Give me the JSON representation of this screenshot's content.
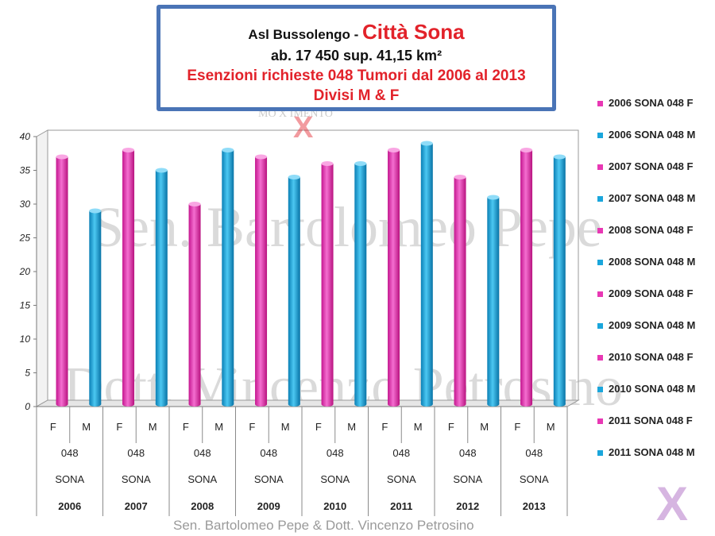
{
  "title": {
    "line1_prefix": "Asl Bussolengo - ",
    "line1_city": "Città Sona",
    "line2": "ab. 17 450 sup. 41,15 km²",
    "line3": "Esenzioni richieste 048 Tumori  dal 2006 al 2013",
    "line4": "Divisi M & F"
  },
  "watermarks": {
    "main1": "Sen. Bartolomeo Pepe",
    "main2": "Dott. Vincenzo Petrosino",
    "small": "MO   X   IMENTO"
  },
  "footer": "Sen. Bartolomeo Pepe &  Dott. Vincenzo Petrosino",
  "logo_letter": "X",
  "colors": {
    "F": "#e838b4",
    "M": "#1aa6dc",
    "title_border": "#4a74b6",
    "title_red": "#e2222a"
  },
  "chart_data": {
    "type": "bar",
    "ylim": [
      0,
      40
    ],
    "yticks": [
      0,
      5,
      10,
      15,
      20,
      25,
      30,
      35,
      40
    ],
    "grid": false,
    "legend_position": "right",
    "code_label": "048",
    "place_label": "SONA",
    "years": [
      "2006",
      "2007",
      "2008",
      "2009",
      "2010",
      "2011",
      "2012",
      "2013"
    ],
    "sex_labels": [
      "F",
      "M"
    ],
    "values_F": [
      37,
      38,
      30,
      37,
      36,
      38,
      34,
      38
    ],
    "values_M": [
      29,
      35,
      38,
      34,
      36,
      39,
      31,
      37
    ],
    "legend": [
      {
        "label": "2006 SONA 048 F",
        "sex": "F"
      },
      {
        "label": "2006 SONA 048 M",
        "sex": "M"
      },
      {
        "label": "2007 SONA 048 F",
        "sex": "F"
      },
      {
        "label": "2007 SONA 048 M",
        "sex": "M"
      },
      {
        "label": "2008 SONA 048 F",
        "sex": "F"
      },
      {
        "label": "2008 SONA 048 M",
        "sex": "M"
      },
      {
        "label": "2009 SONA 048 F",
        "sex": "F"
      },
      {
        "label": "2009 SONA 048 M",
        "sex": "M"
      },
      {
        "label": "2010 SONA 048 F",
        "sex": "F"
      },
      {
        "label": "2010 SONA 048 M",
        "sex": "M"
      },
      {
        "label": "2011 SONA 048 F",
        "sex": "F"
      },
      {
        "label": "2011 SONA 048 M",
        "sex": "M"
      }
    ]
  }
}
